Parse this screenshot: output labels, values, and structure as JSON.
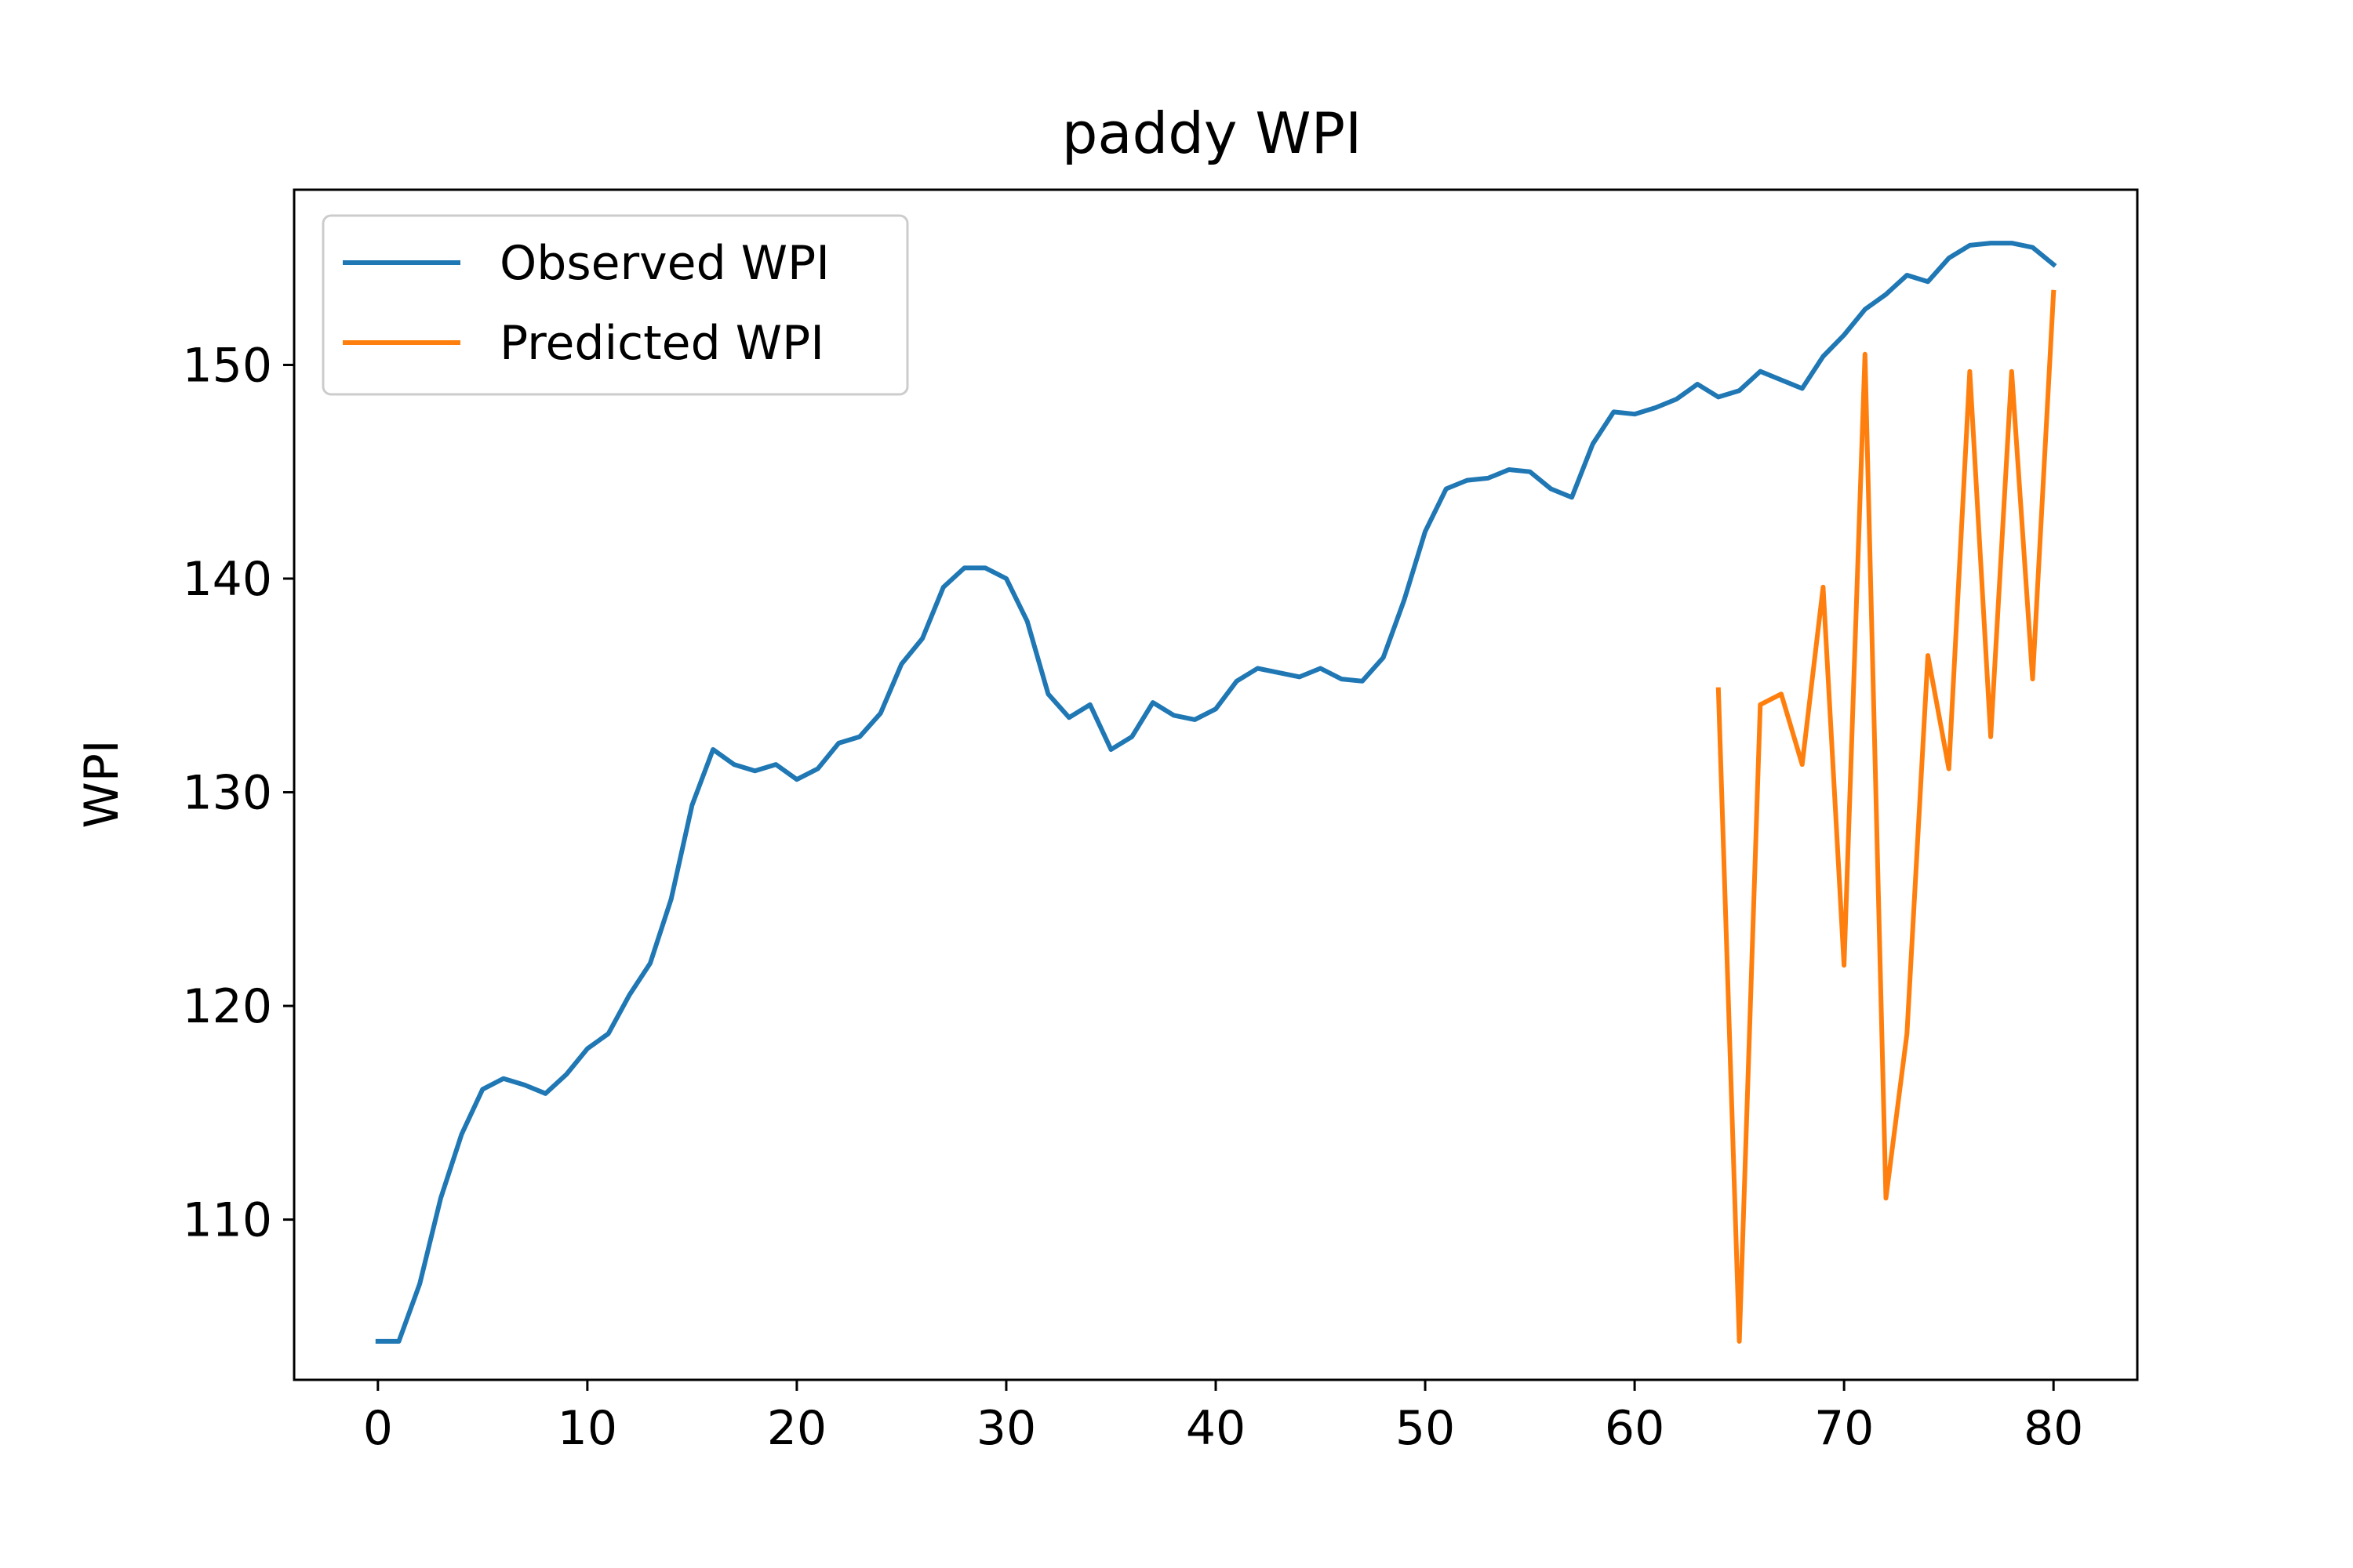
{
  "chart_data": {
    "type": "line",
    "title": "paddy WPI",
    "xlabel": "",
    "ylabel": "WPI",
    "xlim": [
      -4,
      84
    ],
    "ylim": [
      102.5,
      158.2
    ],
    "x_ticks": [
      0,
      10,
      20,
      30,
      40,
      50,
      60,
      70,
      80
    ],
    "y_ticks": [
      110,
      120,
      130,
      140,
      150
    ],
    "legend_position": "upper-left",
    "grid": false,
    "series": [
      {
        "name": "Observed WPI",
        "color": "#1f77b4",
        "x": [
          0,
          1,
          2,
          3,
          4,
          5,
          6,
          7,
          8,
          9,
          10,
          11,
          12,
          13,
          14,
          15,
          16,
          17,
          18,
          19,
          20,
          21,
          22,
          23,
          24,
          25,
          26,
          27,
          28,
          29,
          30,
          31,
          32,
          33,
          34,
          35,
          36,
          37,
          38,
          39,
          40,
          41,
          42,
          43,
          44,
          45,
          46,
          47,
          48,
          49,
          50,
          51,
          52,
          53,
          54,
          55,
          56,
          57,
          58,
          59,
          60,
          61,
          62,
          63,
          64,
          65,
          66,
          67,
          68,
          69,
          70,
          71,
          72,
          73,
          74,
          75,
          76,
          77,
          78,
          79,
          80
        ],
        "y": [
          104.3,
          104.3,
          107.0,
          111.0,
          114.0,
          116.1,
          116.6,
          116.3,
          115.9,
          116.8,
          118.0,
          118.7,
          120.5,
          122.0,
          125.0,
          129.4,
          132.0,
          131.3,
          131.0,
          131.3,
          130.6,
          131.1,
          132.3,
          132.6,
          133.7,
          136.0,
          137.2,
          139.6,
          140.5,
          140.5,
          140.0,
          138.0,
          134.6,
          133.5,
          134.1,
          132.0,
          132.6,
          134.2,
          133.6,
          133.4,
          133.9,
          135.2,
          135.8,
          135.6,
          135.4,
          135.8,
          135.3,
          135.2,
          136.3,
          139.0,
          142.2,
          144.2,
          144.6,
          144.7,
          145.1,
          145.0,
          144.2,
          143.8,
          146.3,
          147.8,
          147.7,
          148.0,
          148.4,
          149.1,
          148.5,
          148.8,
          149.7,
          149.3,
          148.9,
          150.4,
          151.4,
          152.6,
          153.3,
          154.2,
          153.9,
          155.0,
          155.6,
          155.7,
          155.7,
          155.5,
          154.7
        ]
      },
      {
        "name": "Predicted WPI",
        "color": "#ff7f0e",
        "x": [
          64,
          65,
          66,
          67,
          68,
          69,
          70,
          71,
          72,
          73,
          74,
          75,
          76,
          77,
          78,
          79,
          80
        ],
        "y": [
          134.8,
          104.3,
          134.1,
          134.6,
          131.3,
          139.6,
          121.9,
          150.5,
          111.0,
          118.7,
          136.4,
          131.1,
          149.7,
          132.6,
          149.7,
          135.3,
          153.4
        ]
      }
    ]
  }
}
